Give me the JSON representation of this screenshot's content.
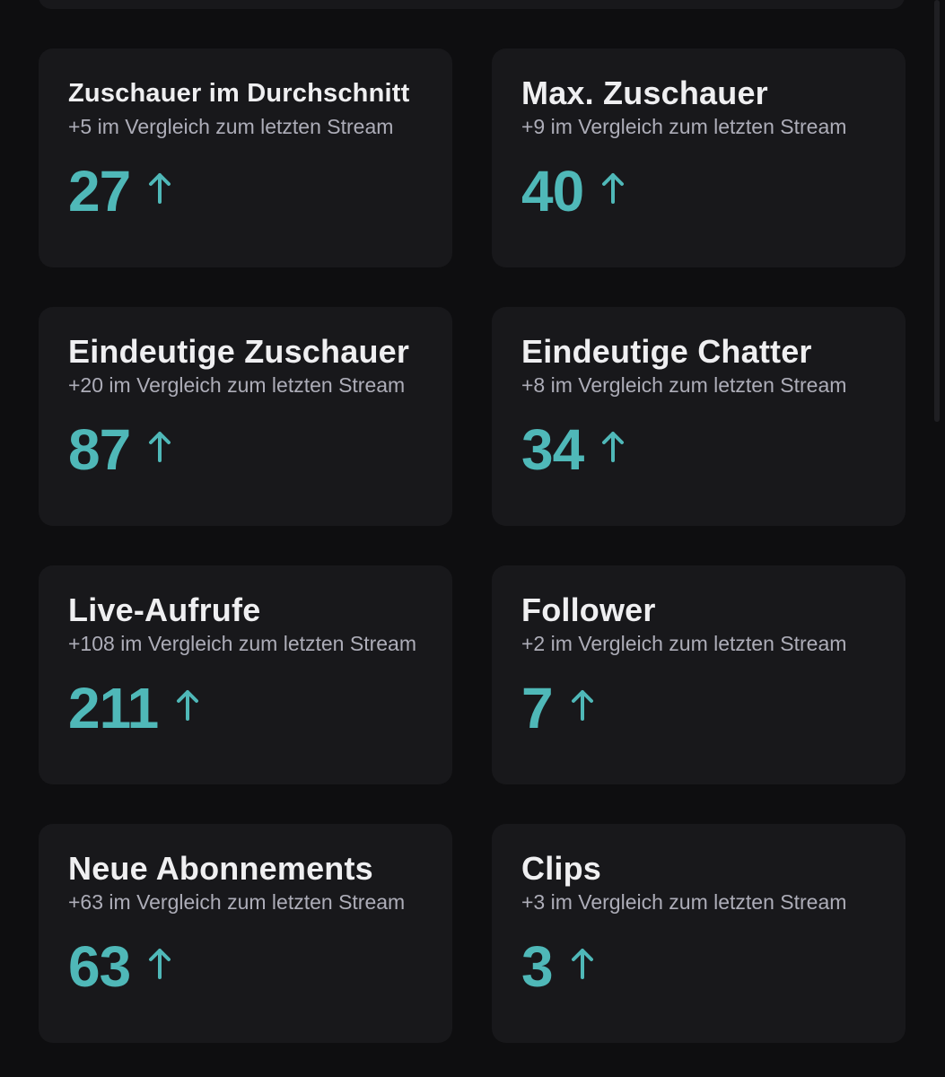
{
  "colors": {
    "background": "#0e0e10",
    "card": "#18181b",
    "title": "#efeff1",
    "subtitle": "#adadb8",
    "accent": "#4fb8b8"
  },
  "stats": [
    {
      "title": "Zuschauer im Durchschnitt",
      "subtitle": "+5 im Vergleich zum letzten Stream",
      "value": "27",
      "trend_icon": "arrow-up-icon"
    },
    {
      "title": "Max. Zuschauer",
      "subtitle": "+9 im Vergleich zum letzten Stream",
      "value": "40",
      "trend_icon": "arrow-up-icon"
    },
    {
      "title": "Eindeutige Zuschauer",
      "subtitle": "+20 im Vergleich zum letzten Stream",
      "value": "87",
      "trend_icon": "arrow-up-icon"
    },
    {
      "title": "Eindeutige Chatter",
      "subtitle": "+8 im Vergleich zum letzten Stream",
      "value": "34",
      "trend_icon": "arrow-up-icon"
    },
    {
      "title": "Live-Aufrufe",
      "subtitle": "+108 im Vergleich zum letzten Stream",
      "value": "211",
      "trend_icon": "arrow-up-icon"
    },
    {
      "title": "Follower",
      "subtitle": "+2 im Vergleich zum letzten Stream",
      "value": "7",
      "trend_icon": "arrow-up-icon"
    },
    {
      "title": "Neue Abonnements",
      "subtitle": "+63 im Vergleich zum letzten Stream",
      "value": "63",
      "trend_icon": "arrow-up-icon"
    },
    {
      "title": "Clips",
      "subtitle": "+3 im Vergleich zum letzten Stream",
      "value": "3",
      "trend_icon": "arrow-up-icon"
    }
  ]
}
